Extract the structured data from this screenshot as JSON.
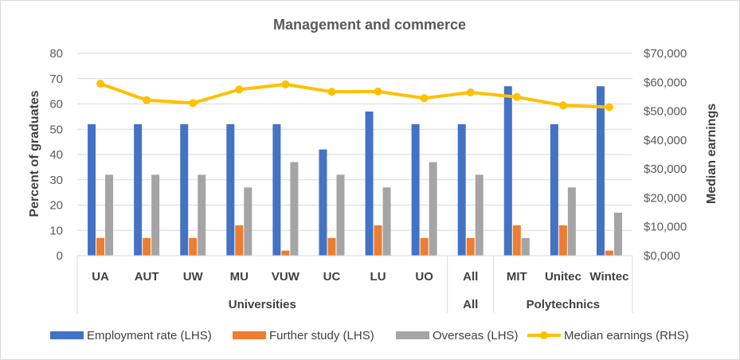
{
  "chart_data": {
    "type": "bar",
    "title": "Management and commerce",
    "categories": [
      "UA",
      "AUT",
      "UW",
      "MU",
      "VUW",
      "UC",
      "LU",
      "UO",
      "All",
      "MIT",
      "Unitec",
      "Wintec"
    ],
    "groups": [
      {
        "label": "Universities",
        "start": 0,
        "end": 7
      },
      {
        "label": "All",
        "start": 8,
        "end": 8
      },
      {
        "label": "Polytechnics",
        "start": 9,
        "end": 11
      }
    ],
    "series": [
      {
        "name": "Employment rate (LHS)",
        "axis": "left",
        "kind": "bar",
        "color": "#4472c4",
        "values": [
          52,
          52,
          52,
          52,
          52,
          42,
          57,
          52,
          52,
          67,
          52,
          67
        ]
      },
      {
        "name": "Further study (LHS)",
        "axis": "left",
        "kind": "bar",
        "color": "#ed7d31",
        "values": [
          7,
          7,
          7,
          12,
          2,
          7,
          12,
          7,
          7,
          12,
          12,
          2
        ]
      },
      {
        "name": "Overseas (LHS)",
        "axis": "left",
        "kind": "bar",
        "color": "#a5a5a5",
        "values": [
          32,
          32,
          32,
          27,
          37,
          32,
          27,
          37,
          32,
          7,
          27,
          17
        ]
      },
      {
        "name": "Median earnings (RHS)",
        "axis": "right",
        "kind": "line",
        "color": "#ffc000",
        "values": [
          59500,
          53800,
          52800,
          57500,
          59300,
          56700,
          56800,
          54500,
          56500,
          54900,
          52000,
          51400
        ]
      }
    ],
    "ylabel": "Percent of graduates",
    "y2label": "Median earnings",
    "ylim": [
      0,
      80
    ],
    "y2lim": [
      0,
      70000
    ],
    "yticks": [
      "0",
      "10",
      "20",
      "30",
      "40",
      "50",
      "60",
      "70",
      "80"
    ],
    "y2ticks": [
      "$0,000",
      "$10,000",
      "$20,000",
      "$30,000",
      "$40,000",
      "$50,000",
      "$60,000",
      "$70,000"
    ],
    "grid": true,
    "legend_position": "bottom"
  }
}
